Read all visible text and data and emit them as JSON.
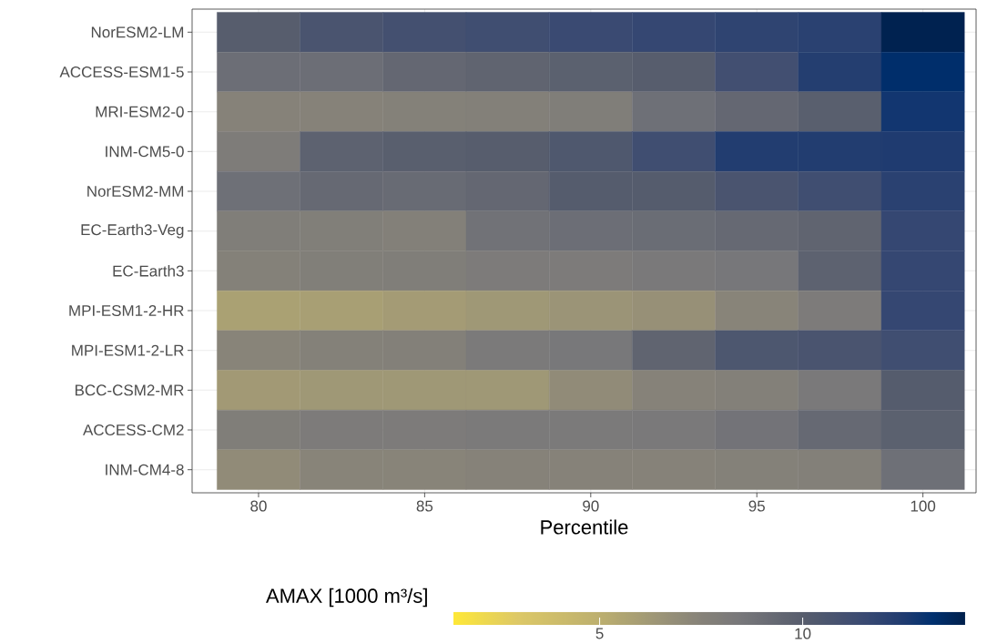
{
  "chart_data": {
    "type": "heatmap",
    "xlabel": "Percentile",
    "clabel": "AMAX [1000 m³/s]",
    "x": [
      80,
      82.5,
      85,
      87.5,
      90,
      92.5,
      95,
      97.5,
      100
    ],
    "xlim": [
      78,
      101.6
    ],
    "xticks": [
      80,
      85,
      90,
      95,
      100
    ],
    "y_categories": [
      "NorESM2-LM",
      "ACCESS-ESM1-5",
      "MRI-ESM2-0",
      "INM-CM5-0",
      "NorESM2-MM",
      "EC-Earth3-Veg",
      "EC-Earth3",
      "MPI-ESM1-2-HR",
      "MPI-ESM1-2-LR",
      "BCC-CSM2-MR",
      "ACCESS-CM2",
      "INM-CM4-8"
    ],
    "cells": [
      [
        10.0,
        10.7,
        11.0,
        11.2,
        11.5,
        11.7,
        11.9,
        12.1,
        13.9
      ],
      [
        9.0,
        9.0,
        9.4,
        9.6,
        9.8,
        10.0,
        11.1,
        12.3,
        13.3
      ],
      [
        7.5,
        7.5,
        7.6,
        7.7,
        7.9,
        8.9,
        9.4,
        9.9,
        12.8
      ],
      [
        8.0,
        9.7,
        9.9,
        10.0,
        10.4,
        11.2,
        12.4,
        12.4,
        12.5
      ],
      [
        8.9,
        9.3,
        9.2,
        9.4,
        10.1,
        10.1,
        10.7,
        11.2,
        12.1
      ],
      [
        7.9,
        7.8,
        7.7,
        8.8,
        9.0,
        9.1,
        9.3,
        9.6,
        11.7
      ],
      [
        7.6,
        7.8,
        7.9,
        8.1,
        8.1,
        8.3,
        8.5,
        9.7,
        11.7
      ],
      [
        5.8,
        5.9,
        6.1,
        6.3,
        6.5,
        6.7,
        7.4,
        8.1,
        11.7
      ],
      [
        7.4,
        7.6,
        7.7,
        8.2,
        8.4,
        9.6,
        10.5,
        10.7,
        11.2
      ],
      [
        6.2,
        6.3,
        6.3,
        6.3,
        7.0,
        7.5,
        7.7,
        8.3,
        10.1
      ],
      [
        7.9,
        8.1,
        8.1,
        8.2,
        8.2,
        8.3,
        8.7,
        9.3,
        9.8
      ],
      [
        7.0,
        7.4,
        7.4,
        7.5,
        7.5,
        7.5,
        7.6,
        7.7,
        8.9
      ]
    ],
    "clim": [
      1.4,
      14.0
    ],
    "cticks": [
      5,
      10
    ],
    "grid": true
  }
}
